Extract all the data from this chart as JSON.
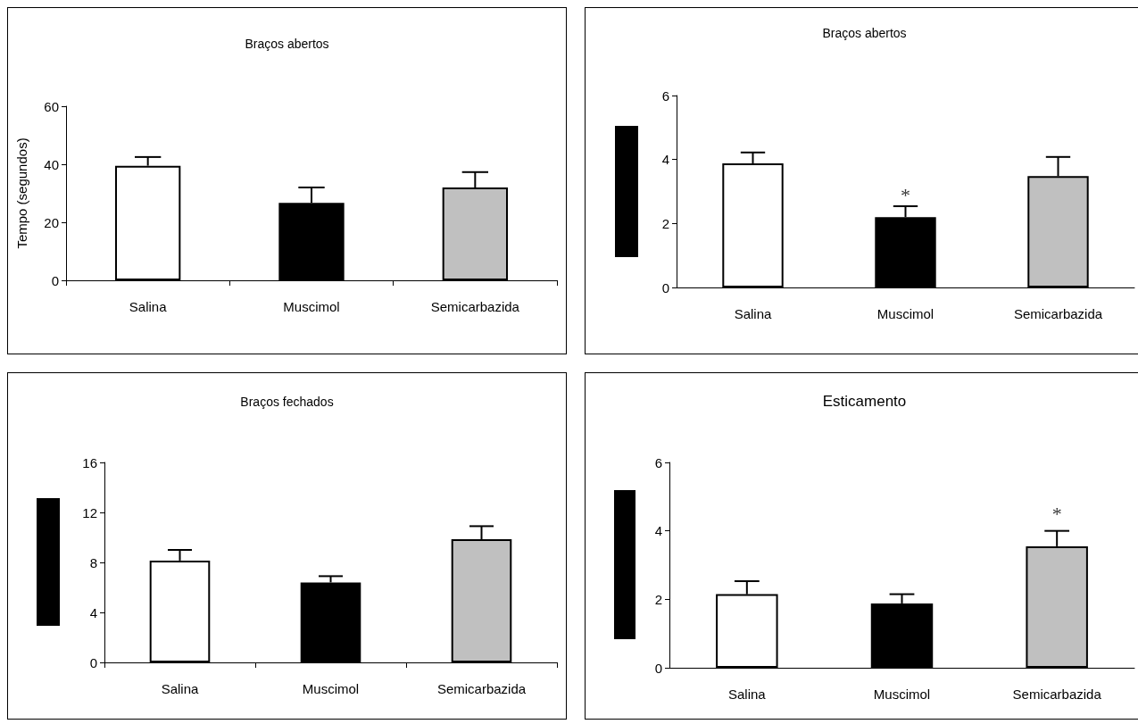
{
  "chart_data": [
    {
      "type": "bar",
      "title": "Braços abertos",
      "ylabel": "Tempo (segundos)",
      "categories": [
        "Salina",
        "Muscimol",
        "Semicarbazida"
      ],
      "values": [
        39.5,
        26.7,
        32
      ],
      "colors": [
        "#ffffff",
        "#000000",
        "#c0c0c0"
      ],
      "errors": [
        [
          39.5,
          42.5
        ],
        [
          26.7,
          32
        ],
        [
          32,
          37.3
        ]
      ],
      "ylim": [
        0,
        60
      ],
      "yticks": [
        0,
        20,
        40,
        60
      ]
    },
    {
      "type": "bar",
      "title": "Braços abertos",
      "categories": [
        "Salina",
        "Muscimol",
        "Semicarbazida"
      ],
      "values": [
        3.88,
        2.2,
        3.48
      ],
      "colors": [
        "#ffffff",
        "#000000",
        "#c0c0c0"
      ],
      "errors": [
        [
          3.88,
          4.22
        ],
        [
          2.2,
          2.54
        ],
        [
          3.48,
          4.08
        ]
      ],
      "ylim": [
        0,
        6
      ],
      "yticks": [
        0,
        2,
        4,
        6
      ],
      "annotations": [
        "*"
      ]
    },
    {
      "type": "bar",
      "title": "Braços fechados",
      "categories": [
        "Salina",
        "Muscimol",
        "Semicarbazida"
      ],
      "values": [
        8.15,
        6.4,
        9.85
      ],
      "colors": [
        "#ffffff",
        "#000000",
        "#c0c0c0"
      ],
      "errors": [
        [
          8.15,
          9
        ],
        [
          6.4,
          6.9
        ],
        [
          9.85,
          10.9
        ]
      ],
      "ylim": [
        0,
        16
      ],
      "yticks": [
        0,
        4,
        8,
        12,
        16
      ]
    },
    {
      "type": "bar",
      "title": "Esticamento",
      "categories": [
        "Salina",
        "Muscimol",
        "Semicarbazida"
      ],
      "values": [
        2.15,
        1.88,
        3.55
      ],
      "colors": [
        "#ffffff",
        "#000000",
        "#c0c0c0"
      ],
      "errors": [
        [
          2.15,
          2.53
        ],
        [
          1.88,
          2.15
        ],
        [
          3.55,
          4
        ]
      ],
      "ylim": [
        0,
        6
      ],
      "yticks": [
        0,
        2,
        4,
        6
      ],
      "annotations": [
        "*"
      ]
    }
  ]
}
